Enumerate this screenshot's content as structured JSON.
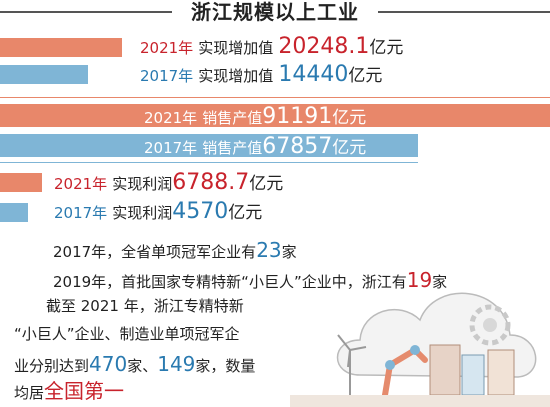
{
  "title": "浙江规模以上工业",
  "chart_data": {
    "type": "bar",
    "orientation": "horizontal",
    "metrics": [
      {
        "name": "实现增加值",
        "unit": "亿元",
        "values": [
          {
            "year": "2021年",
            "value": "20248.1"
          },
          {
            "year": "2017年",
            "value": "14440"
          }
        ]
      },
      {
        "name": "销售产值",
        "unit": "亿元",
        "values": [
          {
            "year": "2021年",
            "value": "91191"
          },
          {
            "year": "2017年",
            "value": "67857"
          }
        ]
      },
      {
        "name": "实现利润",
        "unit": "亿元",
        "values": [
          {
            "year": "2021年",
            "value": "6788.7"
          },
          {
            "year": "2017年",
            "value": "4570"
          }
        ]
      }
    ]
  },
  "facts": {
    "line1_pre": "2017年，全省单项冠军企业有",
    "line1_num": "23",
    "line1_post": "家",
    "line2_pre": "2019年，首批国家专精特新“小巨人”企业中，浙江有",
    "line2_num": "19",
    "line2_post": "家",
    "line3": "截至 2021 年，浙江专精特新",
    "line4": "“小巨人”企业、制造业单项冠军企",
    "line5_pre": "业分别达到",
    "line5_num1": "470",
    "line5_mid": "家、",
    "line5_num2": "149",
    "line5_post": "家，数量",
    "line6_pre": "均居",
    "line6_hl": "全国第一"
  },
  "colors": {
    "orange": "#e8876a",
    "blue": "#7fb5d6",
    "red_text": "#c8232c",
    "blue_text": "#2a7ab0"
  },
  "decoration": "industry-illustration"
}
